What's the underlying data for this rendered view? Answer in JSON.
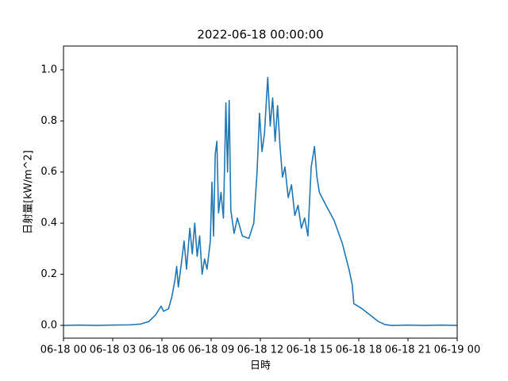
{
  "chart_data": {
    "type": "line",
    "title": "2022-06-18 00:00:00",
    "x_label": "日時",
    "y_label": "日射量[kW/m^2]",
    "x": [
      0,
      1,
      2,
      3,
      4,
      4.7,
      5.2,
      5.6,
      5.95,
      6.1,
      6.4,
      6.6,
      6.8,
      6.9,
      7.0,
      7.2,
      7.35,
      7.5,
      7.7,
      7.85,
      8.0,
      8.15,
      8.3,
      8.45,
      8.6,
      8.75,
      8.95,
      9.05,
      9.15,
      9.25,
      9.35,
      9.45,
      9.6,
      9.75,
      9.9,
      10.0,
      10.1,
      10.2,
      10.4,
      10.6,
      10.9,
      11.3,
      11.6,
      11.8,
      11.95,
      12.1,
      12.25,
      12.45,
      12.6,
      12.75,
      12.9,
      13.05,
      13.2,
      13.35,
      13.5,
      13.7,
      13.9,
      14.1,
      14.3,
      14.5,
      14.7,
      14.9,
      15.1,
      15.3,
      15.45,
      15.6,
      16.0,
      16.5,
      17.0,
      17.4,
      17.6,
      17.7,
      18.2,
      18.7,
      19.2,
      19.6,
      20,
      21,
      22,
      23,
      24
    ],
    "series": [
      {
        "color": "#1f77b4",
        "values": [
          0,
          0.001,
          0,
          0.001,
          0.002,
          0.005,
          0.015,
          0.04,
          0.075,
          0.055,
          0.065,
          0.11,
          0.18,
          0.23,
          0.15,
          0.25,
          0.33,
          0.22,
          0.38,
          0.28,
          0.4,
          0.27,
          0.35,
          0.2,
          0.26,
          0.22,
          0.33,
          0.56,
          0.35,
          0.67,
          0.72,
          0.44,
          0.52,
          0.42,
          0.87,
          0.6,
          0.88,
          0.45,
          0.36,
          0.42,
          0.35,
          0.34,
          0.4,
          0.6,
          0.83,
          0.68,
          0.75,
          0.97,
          0.78,
          0.89,
          0.72,
          0.86,
          0.7,
          0.58,
          0.62,
          0.5,
          0.55,
          0.43,
          0.47,
          0.38,
          0.42,
          0.35,
          0.62,
          0.7,
          0.58,
          0.52,
          0.47,
          0.41,
          0.32,
          0.22,
          0.16,
          0.085,
          0.065,
          0.04,
          0.015,
          0.003,
          0,
          0.001,
          0,
          0.001,
          0
        ]
      }
    ],
    "xlim": [
      0,
      24
    ],
    "xticks": [
      {
        "value": 0,
        "label": "06-18 00"
      },
      {
        "value": 3,
        "label": "06-18 03"
      },
      {
        "value": 6,
        "label": "06-18 06"
      },
      {
        "value": 9,
        "label": "06-18 09"
      },
      {
        "value": 12,
        "label": "06-18 12"
      },
      {
        "value": 15,
        "label": "06-18 15"
      },
      {
        "value": 18,
        "label": "06-18 18"
      },
      {
        "value": 21,
        "label": "06-18 21"
      },
      {
        "value": 24,
        "label": "06-19 00"
      }
    ],
    "ylim": [
      -0.05,
      1.093
    ],
    "yticks": [
      {
        "value": 0,
        "label": "0.0"
      },
      0.2,
      0.4,
      0.6,
      0.8,
      {
        "value": 1,
        "label": "1.0"
      }
    ]
  }
}
